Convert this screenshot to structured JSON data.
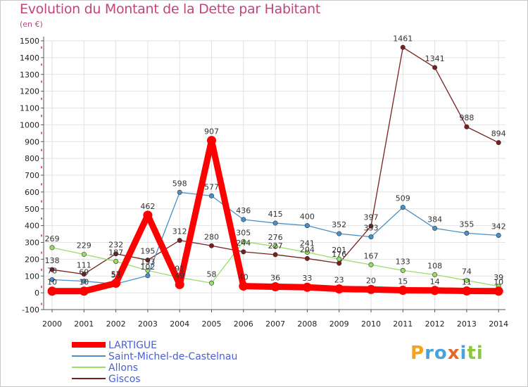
{
  "title": "Evolution du Montant de la Dette par Habitant",
  "subtitle": "(en €)",
  "logo": "Proxiti",
  "chart_data": {
    "type": "line",
    "title": "Evolution du Montant de la Dette par Habitant",
    "subtitle": "(en €)",
    "x": [
      "2000",
      "2001",
      "2002",
      "2003",
      "2004",
      "2005",
      "2006",
      "2007",
      "2008",
      "2009",
      "2010",
      "2011",
      "2012",
      "2013",
      "2014"
    ],
    "yticks": [
      "-100",
      "0",
      "100",
      "200",
      "300",
      "400",
      "500",
      "600",
      "700",
      "800",
      "900",
      "1000",
      "1100",
      "1200",
      "1300",
      "1400",
      "1500"
    ],
    "ylim": [
      -100,
      1500
    ],
    "grid": true,
    "legend_position": "bottom-left",
    "series": [
      {
        "name": "LARTIGUE",
        "color": "#ff0000",
        "values": [
          10,
          10,
          57,
          462,
          49,
          907,
          40,
          36,
          33,
          23,
          20,
          15,
          14,
          11,
          10
        ],
        "labels": [
          "10",
          "10",
          "57",
          "462",
          "49",
          "907",
          "40",
          "36",
          "33",
          "23",
          "20",
          "15",
          "14",
          "11",
          "10"
        ]
      },
      {
        "name": "Saint-Michel-de-Castelnau",
        "color": "#4a90c8",
        "values": [
          78,
          69,
          53,
          102,
          598,
          577,
          436,
          415,
          400,
          352,
          333,
          509,
          384,
          355,
          342
        ],
        "labels": [
          "78",
          "69",
          "53",
          "102",
          "598",
          "577",
          "436",
          "415",
          "400",
          "352",
          "333",
          "509",
          "384",
          "355",
          "342"
        ]
      },
      {
        "name": "Allons",
        "color": "#99dd66",
        "values": [
          269,
          229,
          187,
          133,
          91,
          58,
          305,
          276,
          241,
          201,
          167,
          133,
          108,
          74,
          39
        ],
        "labels": [
          "269",
          "229",
          "187",
          "133",
          "91",
          "58",
          "305",
          "276",
          "241",
          "201",
          "167",
          "133",
          "108",
          "74",
          "39"
        ]
      },
      {
        "name": "Giscos",
        "color": "#7a1f1f",
        "values": [
          138,
          111,
          232,
          195,
          312,
          280,
          244,
          227,
          204,
          176,
          397,
          1461,
          1341,
          988,
          894
        ],
        "labels": [
          "138",
          "111",
          "232",
          "195",
          "312",
          "280",
          "244",
          "227",
          "204",
          "176",
          "397",
          "1461",
          "1341",
          "988",
          "894"
        ]
      }
    ]
  }
}
